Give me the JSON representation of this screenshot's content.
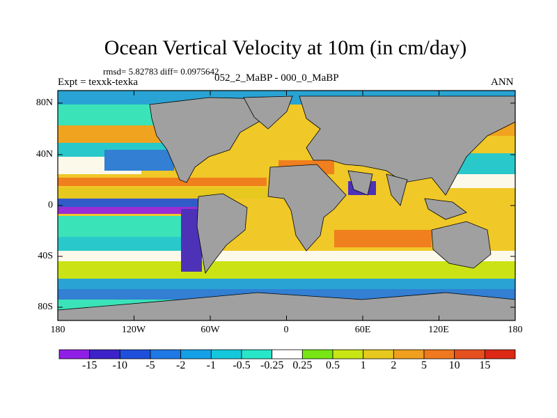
{
  "title": "Ocean Vertical Velocity at 10m (in cm/day)",
  "stats": "rmsd= 5.82783 diff= 0.0975642",
  "left_label": "Expt = texxk-texka",
  "center_label": "052_2_MaBP - 000_0_MaBP",
  "right_label": "ANN",
  "lat_labels": [
    "80N",
    "40N",
    "0",
    "40S",
    "80S"
  ],
  "lon_labels": [
    "180",
    "120W",
    "60W",
    "0",
    "60E",
    "120E",
    "180"
  ],
  "colorbar": {
    "labels": [
      "-15",
      "-10",
      "-5",
      "-2",
      "-1",
      "-0.5",
      "-0.25",
      "0.25",
      "0.5",
      "1",
      "2",
      "5",
      "10",
      "15"
    ],
    "colors": [
      "#8f1ee6",
      "#3c22c8",
      "#1e50dc",
      "#1e78e6",
      "#14a0e6",
      "#14c8dc",
      "#28e6c8",
      "#ffffff",
      "#78e614",
      "#c8e614",
      "#e6c81e",
      "#f0a01e",
      "#f0781e",
      "#e6501e",
      "#dc2814"
    ]
  },
  "land_color": "#a0a0a0",
  "ocean_bg_color": "#f0c828"
}
